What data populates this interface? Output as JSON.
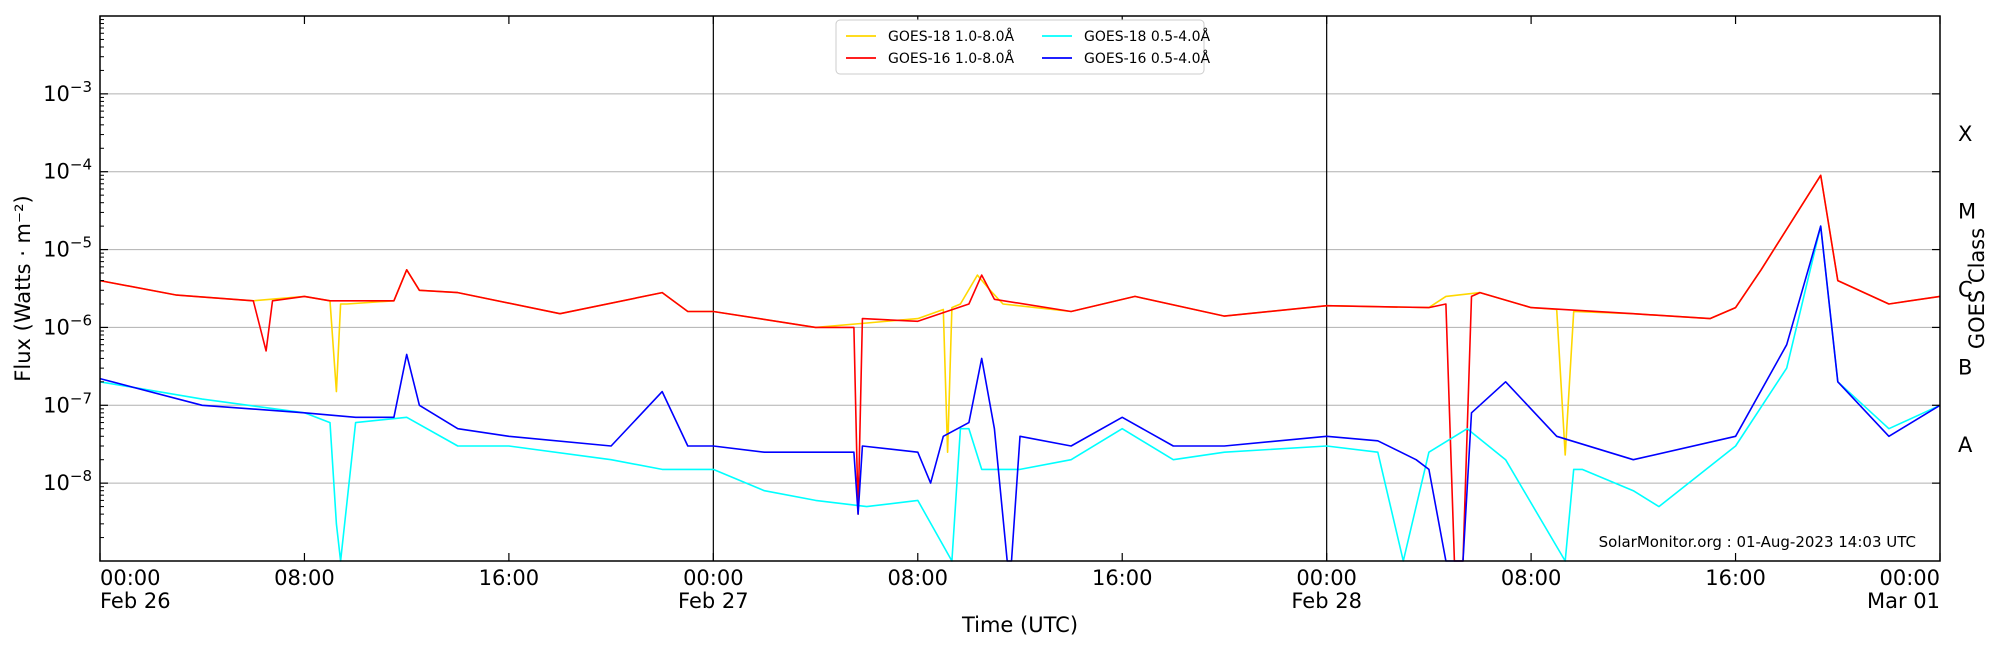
{
  "chart_data": {
    "type": "line",
    "xlabel": "Time (UTC)",
    "ylabel": "Flux (Watts · m⁻²)",
    "ylabel_right": "GOES Class",
    "y_scale": "log",
    "ylim": [
      1e-09,
      0.01
    ],
    "xlim": [
      "2023-02-26 00:00",
      "2023-03-01 00:00"
    ],
    "grid": "horizontal",
    "legend_position": "top-center",
    "x_ticks": [
      {
        "time": "2023-02-26 00:00",
        "line1": "00:00",
        "line2": "Feb 26"
      },
      {
        "time": "2023-02-26 08:00",
        "line1": "08:00",
        "line2": ""
      },
      {
        "time": "2023-02-26 16:00",
        "line1": "16:00",
        "line2": ""
      },
      {
        "time": "2023-02-27 00:00",
        "line1": "00:00",
        "line2": "Feb 27"
      },
      {
        "time": "2023-02-27 08:00",
        "line1": "08:00",
        "line2": ""
      },
      {
        "time": "2023-02-27 16:00",
        "line1": "16:00",
        "line2": ""
      },
      {
        "time": "2023-02-28 00:00",
        "line1": "00:00",
        "line2": "Feb 28"
      },
      {
        "time": "2023-02-28 08:00",
        "line1": "08:00",
        "line2": ""
      },
      {
        "time": "2023-02-28 16:00",
        "line1": "16:00",
        "line2": ""
      },
      {
        "time": "2023-03-01 00:00",
        "line1": "00:00",
        "line2": "Mar 01"
      }
    ],
    "y_ticks": [
      {
        "value": 1e-08,
        "base": "10",
        "exp": "−8"
      },
      {
        "value": 1e-07,
        "base": "10",
        "exp": "−7"
      },
      {
        "value": 1e-06,
        "base": "10",
        "exp": "−6"
      },
      {
        "value": 1e-05,
        "base": "10",
        "exp": "−5"
      },
      {
        "value": 0.0001,
        "base": "10",
        "exp": "−4"
      },
      {
        "value": 0.001,
        "base": "10",
        "exp": "−3"
      }
    ],
    "goes_classes": [
      {
        "label": "A",
        "value": 3.16e-08
      },
      {
        "label": "B",
        "value": 3.16e-07
      },
      {
        "label": "C",
        "value": 3.16e-06
      },
      {
        "label": "M",
        "value": 3.16e-05
      },
      {
        "label": "X",
        "value": 0.000316
      }
    ],
    "day_boundaries": [
      "2023-02-27 00:00",
      "2023-02-28 00:00"
    ],
    "credit": "SolarMonitor.org : 01-Aug-2023 14:03 UTC",
    "series": [
      {
        "name": "GOES-18 1.0-8.0Å",
        "color": "#ffd700",
        "x": [
          "2023-02-26 00:00",
          "2023-02-26 03:00",
          "2023-02-26 06:00",
          "2023-02-26 08:00",
          "2023-02-26 09:00",
          "2023-02-26 09:15",
          "2023-02-26 09:25",
          "2023-02-26 09:40",
          "2023-02-26 11:30",
          "2023-02-26 12:00",
          "2023-02-26 12:30",
          "2023-02-26 14:00",
          "2023-02-26 18:00",
          "2023-02-26 22:00",
          "2023-02-26 23:00",
          "2023-02-27 00:00",
          "2023-02-27 04:00",
          "2023-02-27 08:00",
          "2023-02-27 09:00",
          "2023-02-27 09:10",
          "2023-02-27 09:20",
          "2023-02-27 09:40",
          "2023-02-27 10:20",
          "2023-02-27 10:50",
          "2023-02-27 11:20",
          "2023-02-27 14:00",
          "2023-02-27 16:30",
          "2023-02-27 20:00",
          "2023-02-28 00:00",
          "2023-02-28 04:00",
          "2023-02-28 04:40",
          "2023-02-28 06:00",
          "2023-02-28 08:00",
          "2023-02-28 09:00",
          "2023-02-28 09:20",
          "2023-02-28 09:40",
          "2023-02-28 12:00",
          "2023-02-28 15:00",
          "2023-02-28 16:00",
          "2023-02-28 17:00",
          "2023-02-28 19:20",
          "2023-02-28 20:00",
          "2023-02-28 22:00",
          "2023-03-01 00:00"
        ],
        "y": [
          4e-06,
          2.6e-06,
          2.2e-06,
          2.5e-06,
          2.2e-06,
          1.5e-07,
          2e-06,
          2e-06,
          2.2e-06,
          5.5e-06,
          3e-06,
          2.8e-06,
          1.5e-06,
          2.8e-06,
          1.6e-06,
          1.6e-06,
          1e-06,
          1.3e-06,
          1.7e-06,
          2.5e-08,
          1.8e-06,
          2e-06,
          4.7e-06,
          3e-06,
          2e-06,
          1.6e-06,
          2.5e-06,
          1.4e-06,
          1.9e-06,
          1.8e-06,
          2.5e-06,
          2.8e-06,
          1.8e-06,
          1.7e-06,
          2.3e-08,
          1.6e-06,
          1.5e-06,
          1.3e-06,
          1.8e-06,
          5.5e-06,
          9e-05,
          4e-06,
          2e-06,
          2.5e-06
        ]
      },
      {
        "name": "GOES-16 1.0-8.0Å",
        "color": "#ff0000",
        "x": [
          "2023-02-26 00:00",
          "2023-02-26 03:00",
          "2023-02-26 06:00",
          "2023-02-26 06:30",
          "2023-02-26 06:45",
          "2023-02-26 08:00",
          "2023-02-26 09:00",
          "2023-02-26 11:30",
          "2023-02-26 12:00",
          "2023-02-26 12:30",
          "2023-02-26 14:00",
          "2023-02-26 18:00",
          "2023-02-26 22:00",
          "2023-02-26 23:00",
          "2023-02-27 00:00",
          "2023-02-27 04:00",
          "2023-02-27 05:30",
          "2023-02-27 05:40",
          "2023-02-27 05:50",
          "2023-02-27 08:00",
          "2023-02-27 10:00",
          "2023-02-27 10:30",
          "2023-02-27 11:00",
          "2023-02-27 14:00",
          "2023-02-27 16:30",
          "2023-02-27 20:00",
          "2023-02-28 00:00",
          "2023-02-28 04:00",
          "2023-02-28 04:40",
          "2023-02-28 05:00",
          "2023-02-28 05:20",
          "2023-02-28 05:40",
          "2023-02-28 06:00",
          "2023-02-28 08:00",
          "2023-02-28 12:00",
          "2023-02-28 15:00",
          "2023-02-28 16:00",
          "2023-02-28 17:00",
          "2023-02-28 19:20",
          "2023-02-28 20:00",
          "2023-02-28 22:00",
          "2023-03-01 00:00"
        ],
        "y": [
          4e-06,
          2.6e-06,
          2.2e-06,
          5e-07,
          2.2e-06,
          2.5e-06,
          2.2e-06,
          2.2e-06,
          5.5e-06,
          3e-06,
          2.8e-06,
          1.5e-06,
          2.8e-06,
          1.6e-06,
          1.6e-06,
          1e-06,
          1e-06,
          4e-09,
          1.3e-06,
          1.2e-06,
          2e-06,
          4.7e-06,
          2.3e-06,
          1.6e-06,
          2.5e-06,
          1.4e-06,
          1.9e-06,
          1.8e-06,
          2e-06,
          1e-09,
          1e-09,
          2.5e-06,
          2.8e-06,
          1.8e-06,
          1.5e-06,
          1.3e-06,
          1.8e-06,
          5.5e-06,
          9e-05,
          4e-06,
          2e-06,
          2.5e-06
        ]
      },
      {
        "name": "GOES-18 0.5-4.0Å",
        "color": "#00ffff",
        "x": [
          "2023-02-26 00:00",
          "2023-02-26 04:00",
          "2023-02-26 08:00",
          "2023-02-26 09:00",
          "2023-02-26 09:15",
          "2023-02-26 09:25",
          "2023-02-26 10:00",
          "2023-02-26 12:00",
          "2023-02-26 14:00",
          "2023-02-26 16:00",
          "2023-02-26 20:00",
          "2023-02-26 22:00",
          "2023-02-27 00:00",
          "2023-02-27 02:00",
          "2023-02-27 04:00",
          "2023-02-27 06:00",
          "2023-02-27 08:00",
          "2023-02-27 09:20",
          "2023-02-27 09:40",
          "2023-02-27 10:00",
          "2023-02-27 10:30",
          "2023-02-27 12:00",
          "2023-02-27 14:00",
          "2023-02-27 16:00",
          "2023-02-27 18:00",
          "2023-02-27 20:00",
          "2023-02-28 00:00",
          "2023-02-28 02:00",
          "2023-02-28 03:00",
          "2023-02-28 04:00",
          "2023-02-28 05:30",
          "2023-02-28 07:00",
          "2023-02-28 09:20",
          "2023-02-28 09:40",
          "2023-02-28 10:00",
          "2023-02-28 12:00",
          "2023-02-28 13:00",
          "2023-02-28 16:00",
          "2023-02-28 18:00",
          "2023-02-28 19:20",
          "2023-02-28 20:00",
          "2023-02-28 22:00",
          "2023-03-01 00:00"
        ],
        "y": [
          2e-07,
          1.2e-07,
          8e-08,
          6e-08,
          3e-09,
          1e-09,
          6e-08,
          7e-08,
          3e-08,
          3e-08,
          2e-08,
          1.5e-08,
          1.5e-08,
          8e-09,
          6e-09,
          5e-09,
          6e-09,
          1e-09,
          5e-08,
          5e-08,
          1.5e-08,
          1.5e-08,
          2e-08,
          5e-08,
          2e-08,
          2.5e-08,
          3e-08,
          2.5e-08,
          1e-09,
          2.5e-08,
          5e-08,
          2e-08,
          1e-09,
          1.5e-08,
          1.5e-08,
          8e-09,
          5e-09,
          3e-08,
          3e-07,
          2e-05,
          2e-07,
          5e-08,
          1e-07
        ]
      },
      {
        "name": "GOES-16 0.5-4.0Å",
        "color": "#0000ff",
        "x": [
          "2023-02-26 00:00",
          "2023-02-26 04:00",
          "2023-02-26 08:00",
          "2023-02-26 10:00",
          "2023-02-26 11:30",
          "2023-02-26 12:00",
          "2023-02-26 12:30",
          "2023-02-26 14:00",
          "2023-02-26 16:00",
          "2023-02-26 20:00",
          "2023-02-26 22:00",
          "2023-02-26 23:00",
          "2023-02-27 00:00",
          "2023-02-27 02:00",
          "2023-02-27 04:00",
          "2023-02-27 05:30",
          "2023-02-27 05:40",
          "2023-02-27 05:50",
          "2023-02-27 08:00",
          "2023-02-27 08:30",
          "2023-02-27 09:00",
          "2023-02-27 10:00",
          "2023-02-27 10:30",
          "2023-02-27 11:00",
          "2023-02-27 11:30",
          "2023-02-27 11:40",
          "2023-02-27 12:00",
          "2023-02-27 14:00",
          "2023-02-27 16:00",
          "2023-02-27 18:00",
          "2023-02-27 20:00",
          "2023-02-28 00:00",
          "2023-02-28 02:00",
          "2023-02-28 03:30",
          "2023-02-28 04:00",
          "2023-02-28 04:40",
          "2023-02-28 05:00",
          "2023-02-28 05:20",
          "2023-02-28 05:40",
          "2023-02-28 07:00",
          "2023-02-28 09:00",
          "2023-02-28 12:00",
          "2023-02-28 16:00",
          "2023-02-28 18:00",
          "2023-02-28 19:20",
          "2023-02-28 20:00",
          "2023-02-28 22:00",
          "2023-03-01 00:00"
        ],
        "y": [
          2.2e-07,
          1e-07,
          8e-08,
          7e-08,
          7e-08,
          4.5e-07,
          1e-07,
          5e-08,
          4e-08,
          3e-08,
          1.5e-07,
          3e-08,
          3e-08,
          2.5e-08,
          2.5e-08,
          2.5e-08,
          4e-09,
          3e-08,
          2.5e-08,
          1e-08,
          4e-08,
          6e-08,
          4e-07,
          5e-08,
          1e-09,
          1e-09,
          4e-08,
          3e-08,
          7e-08,
          3e-08,
          3e-08,
          4e-08,
          3.5e-08,
          2e-08,
          1.5e-08,
          1e-09,
          1e-09,
          1e-09,
          8e-08,
          2e-07,
          4e-08,
          2e-08,
          4e-08,
          6e-07,
          2e-05,
          2e-07,
          4e-08,
          1e-07
        ]
      }
    ]
  }
}
